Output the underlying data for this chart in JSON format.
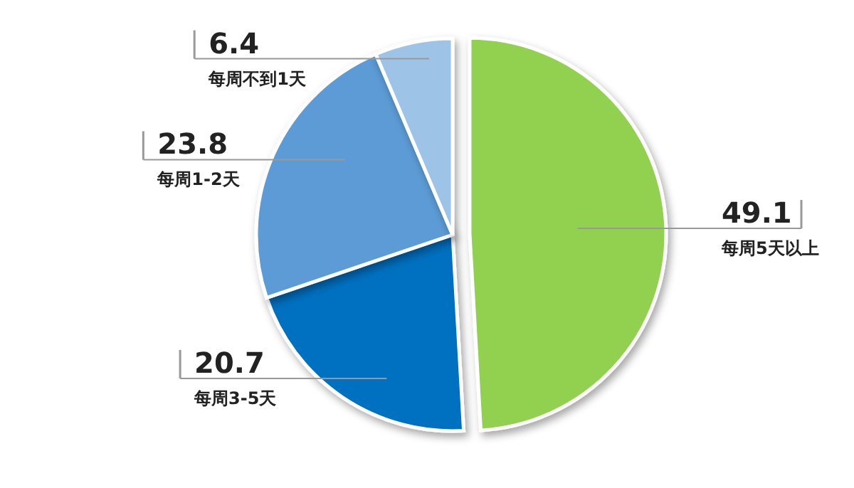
{
  "chart_data": {
    "type": "pie",
    "categories": [
      "每周5天以上",
      "每周3-5天",
      "每周1-2天",
      "每周不到1天"
    ],
    "values": [
      49.1,
      20.7,
      23.8,
      6.4
    ],
    "colors": [
      "#92d050",
      "#0070c0",
      "#5b9bd5",
      "#9dc3e6"
    ],
    "data_labels": true
  }
}
